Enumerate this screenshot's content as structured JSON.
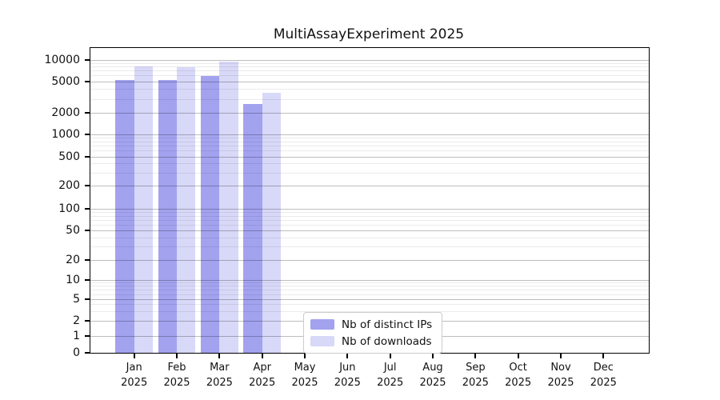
{
  "title": "MultiAssayExperiment 2025",
  "legend": {
    "items": [
      {
        "label": "Nb of distinct IPs",
        "color": "#a2a2ef"
      },
      {
        "label": "Nb of downloads",
        "color": "#d8d8f8"
      }
    ]
  },
  "chart_data": {
    "type": "bar",
    "title": "MultiAssayExperiment 2025",
    "categories": [
      "Jan",
      "Feb",
      "Mar",
      "Apr",
      "May",
      "Jun",
      "Jul",
      "Aug",
      "Sep",
      "Oct",
      "Nov",
      "Dec"
    ],
    "year_label": "2025",
    "series": [
      {
        "name": "Nb of distinct IPs",
        "color": "#a2a2ef",
        "values": [
          5200,
          5200,
          5900,
          2600,
          null,
          null,
          null,
          null,
          null,
          null,
          null,
          null
        ]
      },
      {
        "name": "Nb of downloads",
        "color": "#d8d8f8",
        "values": [
          8000,
          7900,
          9300,
          3600,
          null,
          null,
          null,
          null,
          null,
          null,
          null,
          null
        ]
      }
    ],
    "xlabel": "",
    "ylabel": "",
    "yscale": "log-like",
    "yticks": [
      0,
      1,
      2,
      5,
      10,
      20,
      50,
      100,
      200,
      500,
      1000,
      2000,
      5000,
      10000
    ],
    "ylim": [
      0,
      14500
    ],
    "grid": "horizontal major and log-minor lines drawn over bars",
    "legend_position": "lower center inside plot"
  }
}
